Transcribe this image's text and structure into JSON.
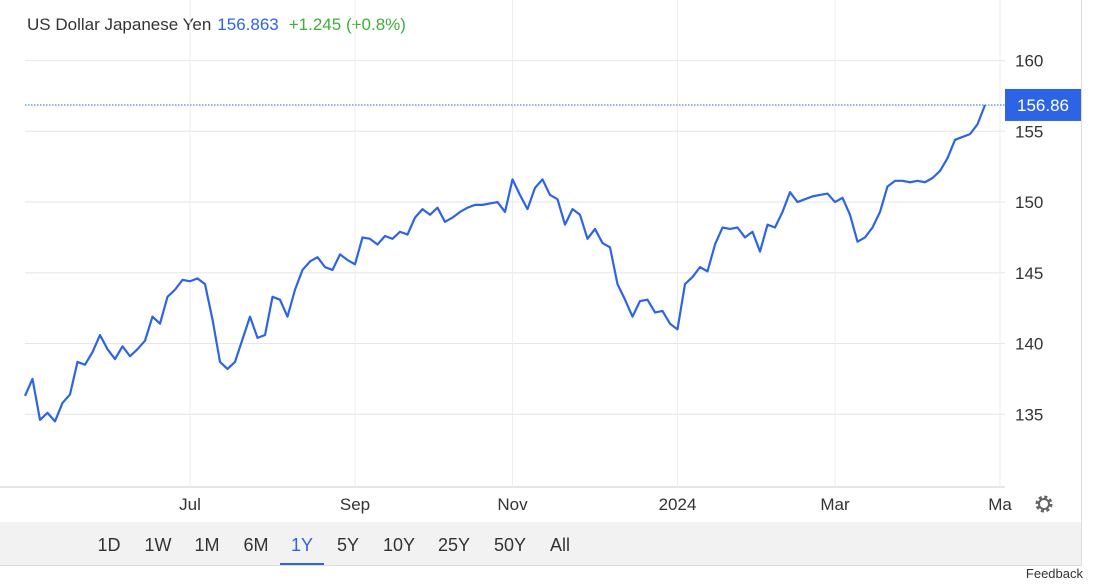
{
  "chart_data": {
    "type": "line",
    "title": "US Dollar Japanese Yen",
    "price": "156.863",
    "change": "+1.245 (+0.8%)",
    "categories": [
      null,
      null,
      null,
      null,
      null,
      null,
      null,
      null,
      null,
      null,
      null,
      null,
      null,
      null,
      null,
      null,
      null,
      null,
      null,
      null,
      null,
      null,
      "Jul",
      null,
      null,
      null,
      null,
      null,
      null,
      null,
      null,
      null,
      null,
      null,
      null,
      null,
      null,
      null,
      null,
      null,
      null,
      null,
      null,
      null,
      "Sep",
      null,
      null,
      null,
      null,
      null,
      null,
      null,
      null,
      null,
      null,
      null,
      null,
      null,
      null,
      null,
      null,
      null,
      null,
      null,
      null,
      "Nov",
      null,
      null,
      null,
      null,
      null,
      null,
      null,
      null,
      null,
      null,
      null,
      null,
      null,
      null,
      null,
      null,
      null,
      null,
      null,
      null,
      null,
      "2024",
      null,
      null,
      null,
      null,
      null,
      null,
      null,
      null,
      null,
      null,
      null,
      null,
      null,
      null,
      null,
      null,
      null,
      null,
      null,
      null,
      "Mar",
      null,
      null,
      null,
      null,
      null,
      null,
      null,
      null,
      null,
      null,
      null,
      null,
      null,
      null,
      null,
      null,
      null,
      null,
      null,
      null,
      null,
      "Ma"
    ],
    "series": [
      {
        "color": "#2d64e6",
        "values": [
          136.3,
          137.5,
          134.6,
          135.1,
          134.5,
          135.8,
          136.4,
          138.7,
          138.5,
          139.4,
          140.6,
          139.6,
          138.9,
          139.8,
          139.1,
          139.6,
          140.2,
          141.9,
          141.4,
          143.3,
          143.8,
          144.5,
          144.4,
          144.6,
          144.2,
          141.7,
          138.7,
          138.2,
          138.7,
          140.3,
          141.9,
          140.4,
          140.6,
          143.3,
          143.1,
          141.9,
          143.8,
          145.2,
          145.8,
          146.1,
          145.4,
          145.2,
          146.3,
          145.9,
          145.6,
          147.5,
          147.4,
          147.0,
          147.6,
          147.4,
          147.9,
          147.7,
          148.9,
          149.5,
          149.1,
          149.6,
          148.6,
          148.9,
          149.3,
          149.6,
          149.8,
          149.8,
          149.9,
          150.0,
          149.3,
          151.6,
          150.5,
          149.5,
          151.0,
          151.6,
          150.5,
          150.2,
          148.4,
          149.5,
          149.1,
          147.4,
          148.1,
          147.1,
          146.8,
          144.2,
          143.1,
          141.9,
          143.0,
          143.1,
          142.2,
          142.3,
          141.4,
          141.0,
          144.2,
          144.7,
          145.4,
          145.1,
          147.0,
          148.2,
          148.1,
          148.2,
          147.5,
          147.9,
          146.5,
          148.4,
          148.2,
          149.3,
          150.7,
          150.0,
          150.2,
          150.4,
          150.5,
          150.6,
          150.0,
          150.3,
          149.1,
          147.2,
          147.5,
          148.2,
          149.3,
          151.1,
          151.5,
          151.5,
          151.4,
          151.5,
          151.4,
          151.7,
          152.2,
          153.1,
          154.4,
          154.6,
          154.8,
          155.5,
          156.86,
          null,
          null
        ]
      }
    ],
    "last_price": {
      "value": 156.863,
      "label": "156.86"
    },
    "ylim": [
      130,
      161.1
    ],
    "yticks": [
      135,
      140,
      145,
      150,
      155,
      160
    ],
    "grid": true
  },
  "range_buttons": [
    "1D",
    "1W",
    "1M",
    "6M",
    "1Y",
    "5Y",
    "10Y",
    "25Y",
    "50Y",
    "All"
  ],
  "active_range": 4,
  "feedback": "Feedback"
}
